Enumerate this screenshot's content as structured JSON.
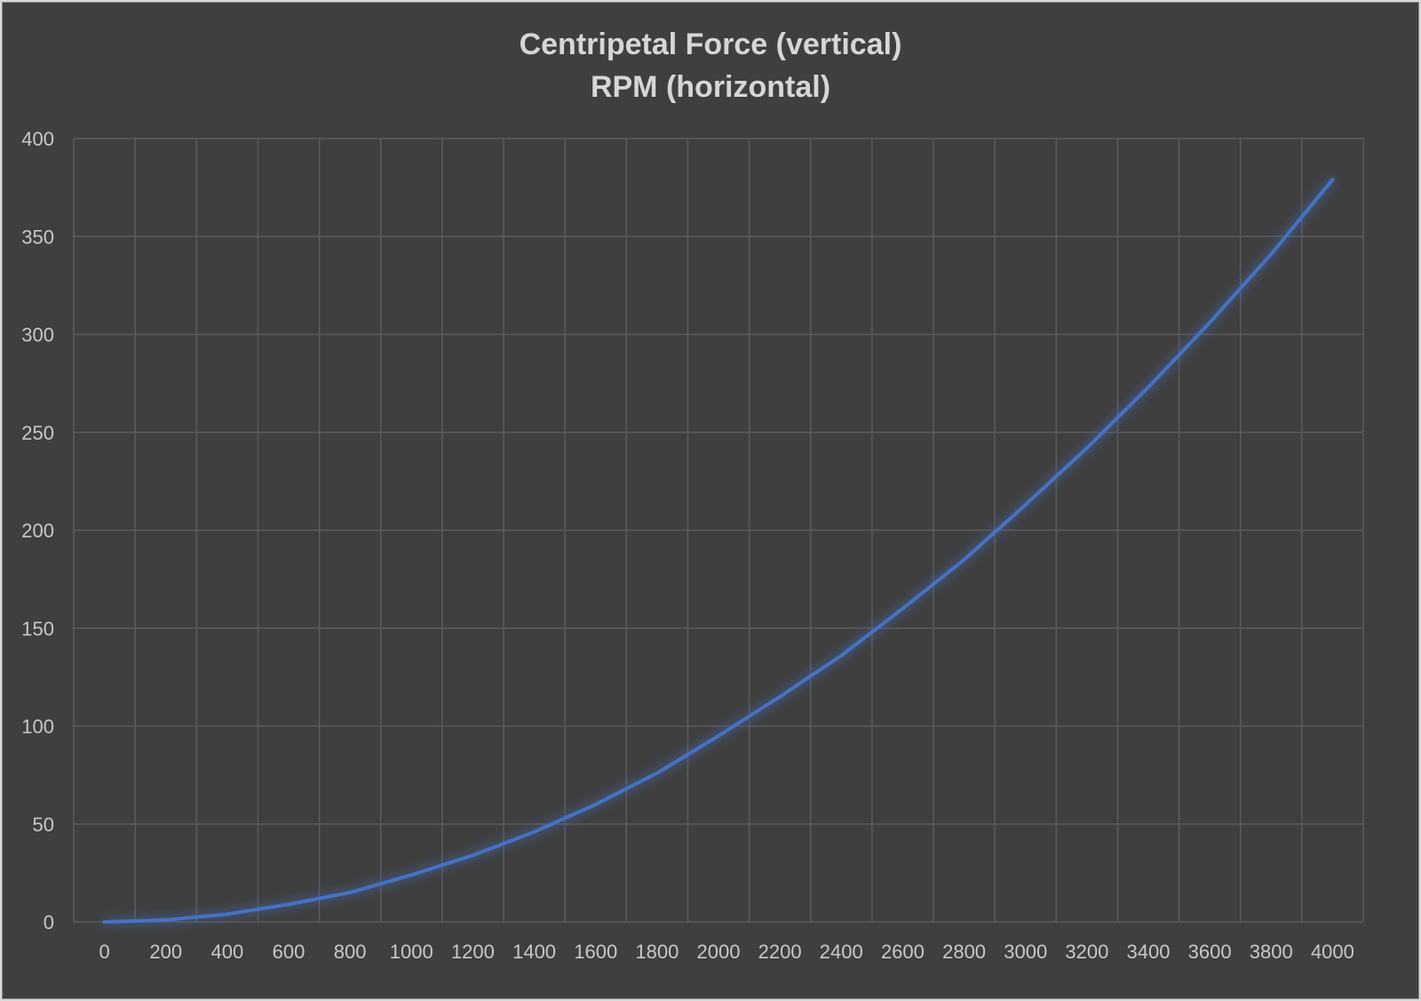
{
  "chart_data": {
    "type": "line",
    "title": "Centripetal Force (vertical)",
    "subtitle": "RPM (horizontal)",
    "xlabel": "",
    "ylabel": "",
    "x": [
      0,
      200,
      400,
      600,
      800,
      1000,
      1200,
      1400,
      1600,
      1800,
      2000,
      2200,
      2400,
      2600,
      2800,
      3000,
      3200,
      3400,
      3600,
      3800,
      4000
    ],
    "series": [
      {
        "values": [
          0,
          1,
          4,
          9,
          15,
          24,
          34,
          46,
          60,
          76,
          95,
          115,
          136,
          160,
          185,
          213,
          242,
          273,
          306,
          341,
          379
        ]
      }
    ],
    "xticks": [
      "0",
      "200",
      "400",
      "600",
      "800",
      "1000",
      "1200",
      "1400",
      "1600",
      "1800",
      "2000",
      "2200",
      "2400",
      "2600",
      "2800",
      "3000",
      "3200",
      "3400",
      "3600",
      "3800",
      "4000"
    ],
    "yticks": [
      "0",
      "50",
      "100",
      "150",
      "200",
      "250",
      "300",
      "350",
      "400"
    ],
    "ylim": [
      0,
      400
    ],
    "grid": true,
    "legend": "none",
    "colors": {
      "background": "#3f3f3f",
      "line": "#4472c4",
      "grid": "#5b5b5b",
      "text": "#c8c8c8"
    }
  }
}
